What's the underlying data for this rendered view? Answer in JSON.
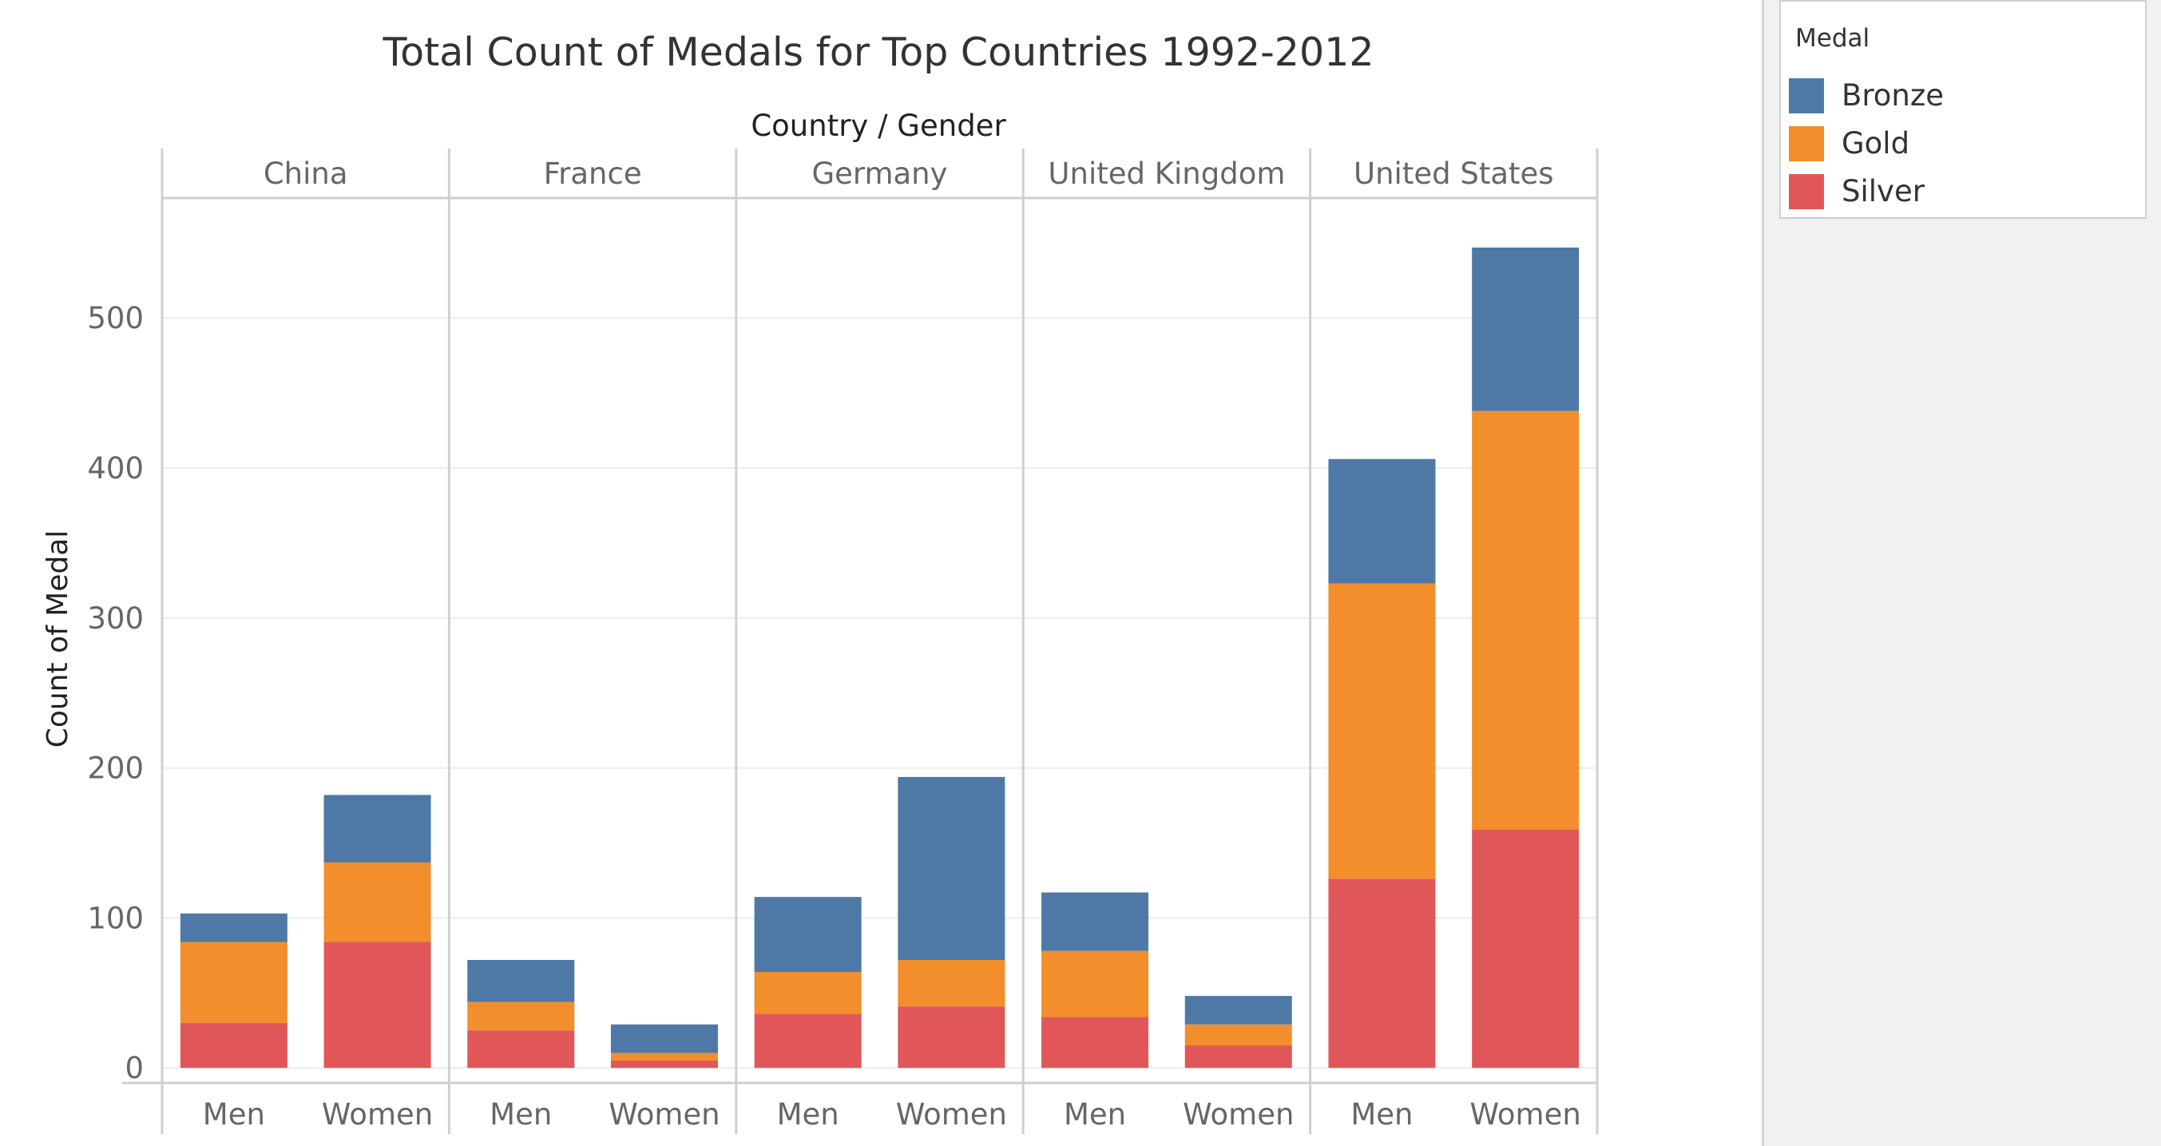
{
  "chart_data": {
    "type": "bar",
    "stacked": true,
    "title": "Total Count of Medals for Top Countries 1992-2012",
    "column_header": "Country / Gender",
    "ylabel": "Count of Medal",
    "ylim": [
      -10,
      580
    ],
    "yticks": [
      0,
      100,
      200,
      300,
      400,
      500
    ],
    "grid": true,
    "legend_position": "right",
    "countries": [
      "China",
      "France",
      "Germany",
      "United Kingdom",
      "United States"
    ],
    "genders": [
      "Men",
      "Women"
    ],
    "series": [
      {
        "name": "Silver",
        "color": "#e15759",
        "values": [
          [
            30,
            84
          ],
          [
            25,
            5
          ],
          [
            36,
            41
          ],
          [
            34,
            15
          ],
          [
            126,
            159
          ]
        ]
      },
      {
        "name": "Gold",
        "color": "#f28e2b",
        "values": [
          [
            54,
            53
          ],
          [
            19,
            5
          ],
          [
            28,
            31
          ],
          [
            44,
            14
          ],
          [
            197,
            279
          ]
        ]
      },
      {
        "name": "Bronze",
        "color": "#4e79a7",
        "values": [
          [
            19,
            45
          ],
          [
            28,
            19
          ],
          [
            50,
            122
          ],
          [
            39,
            19
          ],
          [
            83,
            109
          ]
        ]
      }
    ]
  },
  "legend": {
    "title": "Medal",
    "items": [
      {
        "label": "Bronze",
        "color": "#4e79a7"
      },
      {
        "label": "Gold",
        "color": "#f28e2b"
      },
      {
        "label": "Silver",
        "color": "#e15759"
      }
    ]
  }
}
